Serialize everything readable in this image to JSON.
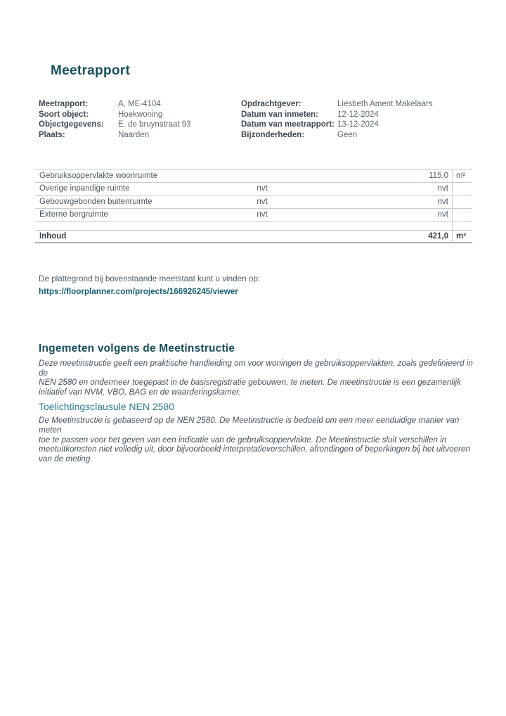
{
  "page": {
    "title": "Meetrapport"
  },
  "meta": {
    "left": [
      {
        "label": "Meetrapport:",
        "value": "A, ME-4104"
      },
      {
        "label": "Soort object:",
        "value": "Hoekwoning"
      },
      {
        "label": "Objectgegevens:",
        "value": "E. de bruynstraat 93"
      },
      {
        "label": "Plaats:",
        "value": "Naarden"
      }
    ],
    "right": [
      {
        "label": "Opdrachtgever:",
        "value": "Liesbeth Ament Makelaars"
      },
      {
        "label": "Datum van inmeten:",
        "value": "12-12-2024"
      },
      {
        "label": "Datum van meetrapport:",
        "value": "13-12-2024"
      },
      {
        "label": "Bijzonderheden:",
        "value": "Geen"
      }
    ]
  },
  "table": {
    "rows": [
      {
        "label": "Gebruiksoppervlakte woonruimte",
        "mid": "",
        "value": "115,0",
        "unit": "m²"
      },
      {
        "label": "Overige inpandige ruimte",
        "mid": "nvt",
        "value": "nvt",
        "unit": ""
      },
      {
        "label": "Gebouwgebonden buitenruimte",
        "mid": "nvt",
        "value": "nvt",
        "unit": ""
      },
      {
        "label": "Externe bergruimte",
        "mid": "nvt",
        "value": "nvt",
        "unit": ""
      },
      {
        "label": "",
        "mid": "",
        "value": "",
        "unit": ""
      },
      {
        "label": "Inhoud",
        "mid": "",
        "value": "421,0",
        "unit": "m³"
      }
    ]
  },
  "floorplan": {
    "intro": "De plattegrond bij bovenstaande meetstaat kunt u vinden op:",
    "link": "https://floorplanner.com/projects/166926245/viewer"
  },
  "sections": [
    {
      "heading": "Ingemeten volgens de Meetinstructie",
      "body": "Deze meetinstructie geeft een praktische handleiding om voor woningen de gebruiksoppervlakten, zoals gedefinieerd in de\nNEN 2580 en ondermeer toegepast in de basisregistratie gebouwen, te meten. De meetinstructie is een gezamenlijk\ninitiatief van NVM, VBO, BAG en de waarderingskamer."
    },
    {
      "heading": "Toelichtingsclausule NEN 2580",
      "body": "De Meetinstructie is gebaseerd op de NEN 2580. De Meetinstructie is bedoeld om een meer eenduidige manier van meten\ntoe te passen voor het geven van een indicatie van de gebruiksoppervlakte. De Meetinstructie sluit verschillen in\nmeetuitkomsten niet volledig uit, door bijvoorbeeld interpretatieverschillen, afrondingen of beperkingen bij het uitvoeren\nvan de meting."
    }
  ],
  "colors": {
    "accent_teal_dark": "#174f5e",
    "accent_teal_light": "#2e7d8c",
    "link_teal": "#176074"
  }
}
